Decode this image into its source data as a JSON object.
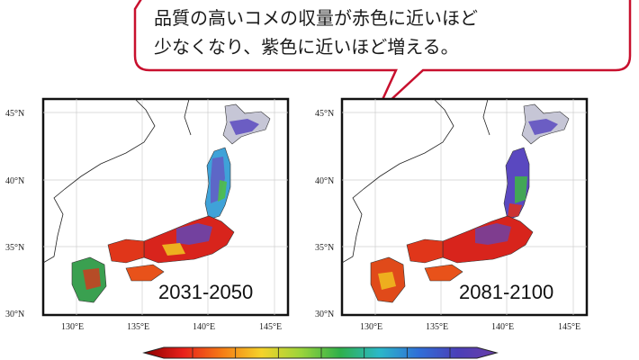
{
  "callout": {
    "line1": "品質の高いコメの収量が赤色に近いほど",
    "line2": "少なくなり、紫色に近いほど増える。",
    "border_color": "#c8102e"
  },
  "maps": [
    {
      "period": "2031-2050",
      "lat_ticks": [
        "45°N",
        "40°N",
        "35°N",
        "30°N"
      ],
      "lon_ticks": [
        "130°E",
        "135°E",
        "140°E",
        "145°E"
      ]
    },
    {
      "period": "2081-2100",
      "lat_ticks": [
        "45°N",
        "40°N",
        "35°N",
        "30°N"
      ],
      "lon_ticks": [
        "130°E",
        "135°E",
        "140°E",
        "145°E"
      ]
    }
  ],
  "colorbar": {
    "colors": [
      "#8b0000",
      "#e8201a",
      "#f57c14",
      "#f5d32a",
      "#9bd43a",
      "#2fb04a",
      "#2bb8c8",
      "#2f6fd8",
      "#4a3fb8",
      "#6a3fa8"
    ]
  }
}
